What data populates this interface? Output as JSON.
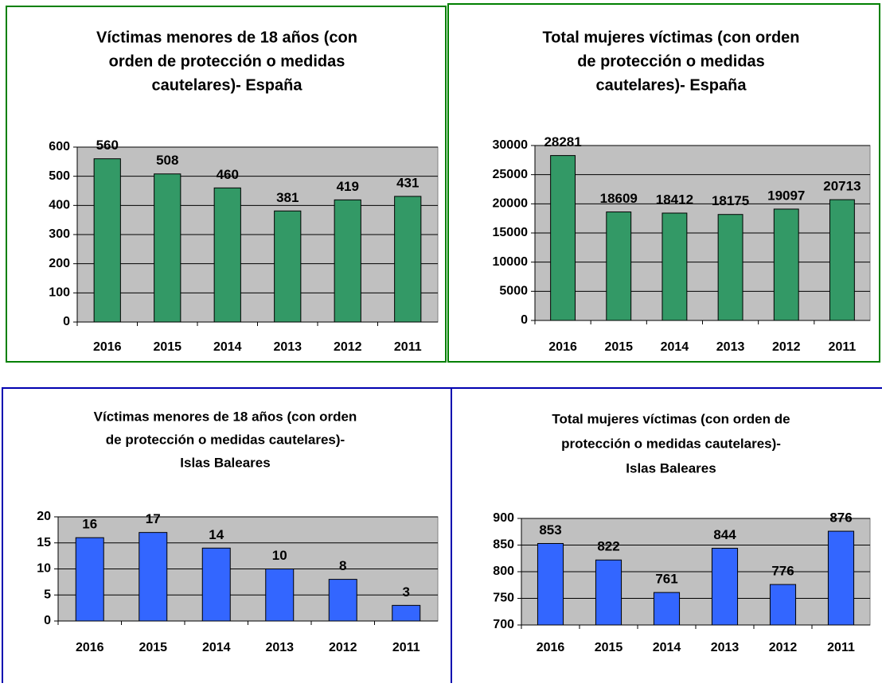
{
  "chart_data": [
    {
      "type": "bar",
      "title": [
        "Víctimas menores de 18 años (con",
        "orden de protección o medidas",
        "cautelares)- España"
      ],
      "categories": [
        "2016",
        "2015",
        "2014",
        "2013",
        "2012",
        "2011"
      ],
      "values": [
        560,
        508,
        460,
        381,
        419,
        431
      ],
      "color": "#339966",
      "ylim": [
        0,
        600
      ],
      "yticks": [
        0,
        100,
        200,
        300,
        400,
        500,
        600
      ],
      "grid": true
    },
    {
      "type": "bar",
      "title": [
        "Total mujeres víctimas (con orden",
        "de protección o medidas",
        "cautelares)- España"
      ],
      "categories": [
        "2016",
        "2015",
        "2014",
        "2013",
        "2012",
        "2011"
      ],
      "values": [
        28281,
        18609,
        18412,
        18175,
        19097,
        20713
      ],
      "color": "#339966",
      "ylim": [
        0,
        30000
      ],
      "yticks": [
        0,
        5000,
        10000,
        15000,
        20000,
        25000,
        30000
      ],
      "grid": true
    },
    {
      "type": "bar",
      "title": [
        "Víctimas menores de 18 años (con orden",
        "de protección o medidas cautelares)-",
        "Islas Baleares"
      ],
      "categories": [
        "2016",
        "2015",
        "2014",
        "2013",
        "2012",
        "2011"
      ],
      "values": [
        16,
        17,
        14,
        10,
        8,
        3
      ],
      "color": "#3366ff",
      "ylim": [
        0,
        20
      ],
      "yticks": [
        0,
        5,
        10,
        15,
        20
      ],
      "grid": true
    },
    {
      "type": "bar",
      "title": [
        "Total mujeres víctimas (con orden de",
        "protección o medidas cautelares)-",
        "Islas Baleares"
      ],
      "categories": [
        "2016",
        "2015",
        "2014",
        "2013",
        "2012",
        "2011"
      ],
      "values": [
        853,
        822,
        761,
        844,
        776,
        876
      ],
      "color": "#3366ff",
      "ylim": [
        700,
        900
      ],
      "yticks": [
        700,
        750,
        800,
        850,
        900
      ],
      "grid": true
    }
  ]
}
